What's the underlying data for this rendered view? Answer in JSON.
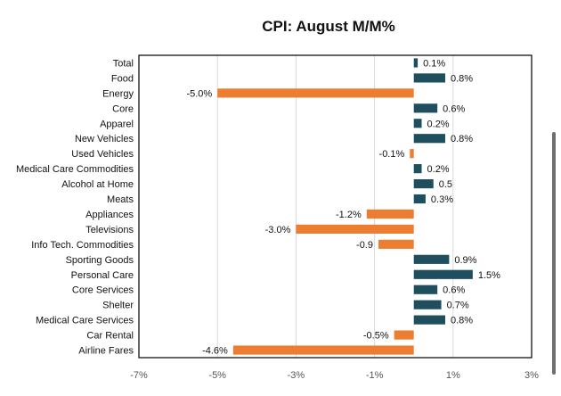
{
  "chart_data": {
    "type": "bar",
    "orientation": "horizontal",
    "title": "CPI: August M/M%",
    "categories": [
      "Total",
      "Food",
      "Energy",
      "Core",
      "Apparel",
      "New Vehicles",
      "Used Vehicles",
      "Medical Care Commodities",
      "Alcohol at Home",
      "Meats",
      "Appliances",
      "Televisions",
      "Info Tech. Commodities",
      "Sporting Goods",
      "Personal Care",
      "Core Services",
      "Shelter",
      "Medical Care Services",
      "Car Rental",
      "Airline Fares"
    ],
    "values": [
      0.1,
      0.8,
      -5.0,
      0.6,
      0.2,
      0.8,
      -0.1,
      0.2,
      0.5,
      0.3,
      -1.2,
      -3.0,
      -0.9,
      0.9,
      1.5,
      0.6,
      0.7,
      0.8,
      -0.5,
      -4.6
    ],
    "data_labels": [
      "0.1%",
      "0.8%",
      "-5.0%",
      "0.6%",
      "0.2%",
      "0.8%",
      "-0.1%",
      "0.2%",
      "0.5",
      "0.3%",
      "-1.2%",
      "-3.0%",
      "-0.9",
      "0.9%",
      "1.5%",
      "0.6%",
      "0.7%",
      "0.8%",
      "-0.5%",
      "-4.6%"
    ],
    "xlim": [
      -7,
      3
    ],
    "x_ticks": [
      -7,
      -5,
      -3,
      -1,
      1,
      3
    ],
    "x_tick_labels": [
      "-7%",
      "-5%",
      "-3%",
      "-1%",
      "1%",
      "3%"
    ],
    "grid": true,
    "legend": "none",
    "colors": {
      "positive": "#1f4e5f",
      "negative": "#ed7d31"
    }
  },
  "ui": {
    "scrollbar_color": "#6f6f6f"
  }
}
